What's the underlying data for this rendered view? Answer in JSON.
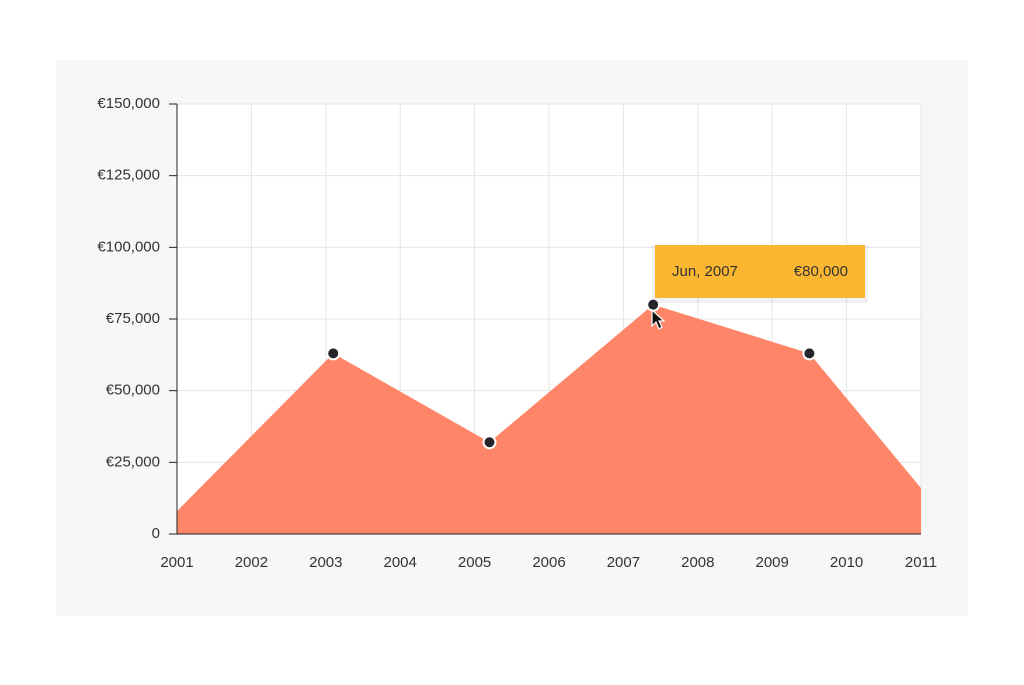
{
  "chart_data": {
    "type": "area",
    "x": [
      2001,
      2003.1,
      2005.2,
      2007.4,
      2009.5,
      2011
    ],
    "series": [
      {
        "color": "#ff8163",
        "values": [
          8000,
          63000,
          32000,
          80000,
          63000,
          16000
        ]
      }
    ],
    "marker_indices": [
      1,
      2,
      3,
      4
    ],
    "marker_color": "#26242b",
    "xlim": [
      2001,
      2011
    ],
    "xticks": [
      2001,
      2002,
      2003,
      2004,
      2005,
      2006,
      2007,
      2008,
      2009,
      2010,
      2011
    ],
    "ylim": [
      0,
      150000
    ],
    "yticks": [
      0,
      {
        "value": 25000,
        "label": "€25,000"
      },
      {
        "value": 50000,
        "label": "€50,000"
      },
      {
        "value": 75000,
        "label": "€75,000"
      },
      {
        "value": 100000,
        "label": "€100,000"
      },
      {
        "value": 125000,
        "label": "€125,000"
      },
      {
        "value": 150000,
        "label": "€150,000"
      }
    ],
    "grid": true,
    "tooltip": {
      "x_label": "Jun, 2007",
      "value_label": "€80,000",
      "color": "#fbb731"
    }
  }
}
